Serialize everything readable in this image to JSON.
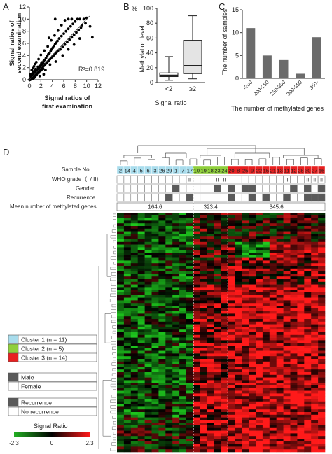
{
  "panels": {
    "A": {
      "letter": "A"
    },
    "B": {
      "letter": "B"
    },
    "C": {
      "letter": "C"
    },
    "D": {
      "letter": "D"
    }
  },
  "chart_data": [
    {
      "id": "A",
      "type": "scatter",
      "title": "",
      "xlabel_lines": [
        "Signal ratios of",
        "first examination"
      ],
      "ylabel_lines": [
        "Signal ratios of",
        "second examination"
      ],
      "xlim": [
        0,
        12
      ],
      "ylim": [
        0,
        12
      ],
      "xticks": [
        "0",
        "2",
        "4",
        "6",
        "8",
        "10",
        "12"
      ],
      "yticks": [
        "0",
        "2",
        "4",
        "6",
        "8",
        "10",
        "12"
      ],
      "annotation": "R²=0.819",
      "fit_line": [
        [
          0,
          0
        ],
        [
          10.5,
          10.5
        ]
      ],
      "points": [
        [
          0.2,
          0.1
        ],
        [
          0.3,
          0.4
        ],
        [
          0.5,
          0.3
        ],
        [
          0.6,
          0.8
        ],
        [
          0.8,
          0.5
        ],
        [
          0.9,
          1.0
        ],
        [
          1.0,
          0.7
        ],
        [
          1.1,
          1.3
        ],
        [
          1.2,
          0.9
        ],
        [
          1.3,
          1.5
        ],
        [
          1.4,
          1.1
        ],
        [
          1.5,
          1.8
        ],
        [
          1.6,
          1.3
        ],
        [
          1.7,
          2.0
        ],
        [
          1.8,
          1.5
        ],
        [
          1.9,
          2.3
        ],
        [
          2.0,
          1.7
        ],
        [
          2.1,
          2.6
        ],
        [
          2.2,
          1.9
        ],
        [
          2.3,
          2.8
        ],
        [
          2.4,
          2.2
        ],
        [
          2.5,
          3.1
        ],
        [
          2.6,
          2.4
        ],
        [
          2.7,
          3.3
        ],
        [
          2.8,
          2.6
        ],
        [
          2.9,
          3.6
        ],
        [
          3.0,
          2.8
        ],
        [
          3.1,
          3.9
        ],
        [
          3.2,
          3.0
        ],
        [
          3.3,
          4.2
        ],
        [
          3.4,
          3.2
        ],
        [
          3.5,
          4.4
        ],
        [
          3.6,
          3.4
        ],
        [
          3.7,
          4.7
        ],
        [
          3.8,
          3.6
        ],
        [
          3.9,
          5.0
        ],
        [
          4.0,
          3.8
        ],
        [
          4.1,
          5.3
        ],
        [
          4.2,
          4.0
        ],
        [
          4.3,
          5.6
        ],
        [
          4.4,
          4.2
        ],
        [
          4.5,
          5.9
        ],
        [
          4.6,
          4.4
        ],
        [
          4.7,
          6.1
        ],
        [
          4.8,
          4.6
        ],
        [
          4.9,
          6.4
        ],
        [
          5.0,
          4.8
        ],
        [
          5.2,
          6.8
        ],
        [
          5.4,
          5.0
        ],
        [
          5.6,
          7.2
        ],
        [
          5.8,
          5.4
        ],
        [
          6.0,
          7.6
        ],
        [
          6.2,
          5.8
        ],
        [
          6.4,
          8.0
        ],
        [
          6.6,
          6.2
        ],
        [
          6.8,
          8.4
        ],
        [
          7.0,
          6.6
        ],
        [
          7.2,
          8.8
        ],
        [
          7.4,
          7.0
        ],
        [
          7.6,
          9.2
        ],
        [
          7.8,
          7.4
        ],
        [
          8.0,
          9.6
        ],
        [
          8.2,
          7.8
        ],
        [
          8.4,
          10.0
        ],
        [
          8.6,
          8.2
        ],
        [
          8.8,
          10.0
        ],
        [
          9.0,
          8.6
        ],
        [
          9.2,
          9.0
        ],
        [
          9.5,
          10.0
        ],
        [
          10.0,
          10.2
        ],
        [
          0.4,
          1.6
        ],
        [
          0.8,
          2.2
        ],
        [
          1.2,
          2.9
        ],
        [
          1.6,
          3.4
        ],
        [
          2.0,
          4.1
        ],
        [
          2.6,
          4.8
        ],
        [
          3.2,
          5.5
        ],
        [
          3.8,
          6.5
        ],
        [
          4.4,
          7.3
        ],
        [
          5.0,
          8.1
        ],
        [
          5.6,
          9.0
        ],
        [
          6.2,
          9.8
        ],
        [
          6.8,
          10.0
        ],
        [
          7.4,
          10.0
        ],
        [
          4.5,
          10.0
        ],
        [
          3.4,
          6.9
        ],
        [
          2.8,
          1.6
        ],
        [
          3.6,
          2.5
        ],
        [
          4.6,
          3.0
        ],
        [
          5.8,
          4.0
        ],
        [
          6.8,
          5.0
        ],
        [
          7.8,
          5.8
        ],
        [
          8.8,
          6.8
        ],
        [
          10.6,
          8.8
        ],
        [
          11.0,
          7.0
        ],
        [
          1.8,
          0.6
        ],
        [
          2.5,
          0.9
        ],
        [
          0.6,
          1.9
        ],
        [
          1.0,
          2.6
        ],
        [
          9.8,
          9.3
        ]
      ]
    },
    {
      "id": "B",
      "type": "boxplot",
      "title": "",
      "ylabel": "Methylation level",
      "unit_label": "%",
      "xlabel": "Signal ratio",
      "ylim": [
        0,
        100
      ],
      "yticks": [
        "0",
        "20",
        "40",
        "60",
        "80",
        "100"
      ],
      "categories": [
        "<2",
        "≥2"
      ],
      "boxes": [
        {
          "min": 3,
          "q1": 8,
          "median": 10,
          "q3": 13,
          "max": 35,
          "fill": "#ffffff"
        },
        {
          "min": 5,
          "q1": 12,
          "median": 23,
          "q3": 57,
          "max": 90,
          "fill": "#e4e4e4"
        }
      ]
    },
    {
      "id": "C",
      "type": "bar",
      "title": "",
      "ylabel": "The number of samples",
      "xlabel": "The number of methylated genes",
      "ylim": [
        0,
        15
      ],
      "yticks": [
        "0",
        "5",
        "10",
        "15"
      ],
      "categories": [
        "-200",
        "200-250",
        "250-300",
        "300-350",
        "350-"
      ],
      "values": [
        11,
        5,
        4,
        1,
        9
      ],
      "bar_color": "#6b6b6b"
    },
    {
      "id": "D",
      "type": "heatmap",
      "row_labels": [
        "Sample No.",
        "WHO grade（I / II）",
        "Gender",
        "Recurrence",
        "Mean number of methylated genes"
      ],
      "samples": [
        "2",
        "14",
        "4",
        "5",
        "6",
        "3",
        "26",
        "29",
        "1",
        "7",
        "17",
        "10",
        "19",
        "18",
        "23",
        "24",
        "20",
        "8",
        "25",
        "9",
        "22",
        "15",
        "21",
        "13",
        "11",
        "12",
        "28",
        "30",
        "27",
        "16"
      ],
      "clusters": [
        1,
        1,
        1,
        1,
        1,
        1,
        1,
        1,
        1,
        1,
        1,
        2,
        2,
        2,
        2,
        2,
        3,
        3,
        3,
        3,
        3,
        3,
        3,
        3,
        3,
        3,
        3,
        3,
        3,
        3
      ],
      "who_grade_marks": [
        "",
        "",
        "",
        "",
        "",
        "",
        "",
        "",
        "",
        "",
        "II",
        "",
        "",
        "",
        "II",
        "II",
        "",
        "",
        "",
        "",
        "",
        "",
        "",
        "",
        "II",
        "",
        "",
        "II",
        "II",
        "II"
      ],
      "gender_dark": [
        false,
        false,
        false,
        false,
        false,
        false,
        false,
        false,
        true,
        false,
        false,
        false,
        false,
        false,
        true,
        false,
        true,
        false,
        true,
        true,
        false,
        false,
        false,
        false,
        false,
        true,
        false,
        true,
        false,
        true
      ],
      "recurrence_dark": [
        false,
        false,
        false,
        false,
        false,
        false,
        false,
        true,
        false,
        false,
        true,
        false,
        false,
        false,
        false,
        false,
        true,
        false,
        false,
        true,
        false,
        true,
        false,
        false,
        true,
        false,
        false,
        true,
        true,
        true
      ],
      "cluster_means": [
        "164.6",
        "323.4",
        "345.6"
      ],
      "legend_clusters": [
        {
          "label": "Cluster 1 (n = 11)",
          "color": "#a8dcec"
        },
        {
          "label": "Cluster 2 (n = 5)",
          "color": "#8fcf3c"
        },
        {
          "label": "Cluster 3 (n = 14)",
          "color": "#e82020"
        }
      ],
      "legend_gender": [
        {
          "label": "Male",
          "color": "#5a5a5a"
        },
        {
          "label": "Female",
          "color": "#ffffff"
        }
      ],
      "legend_recurrence": [
        {
          "label": "Recurrence",
          "color": "#5a5a5a"
        },
        {
          "label": "No recurrence",
          "color": "#ffffff"
        }
      ],
      "colorbar": {
        "title": "Signal Ratio",
        "min": "-2.3",
        "mid": "0",
        "max": "2.3",
        "low_color": "#22b022",
        "mid_color": "#000000",
        "high_color": "#ff1a1a"
      }
    }
  ]
}
